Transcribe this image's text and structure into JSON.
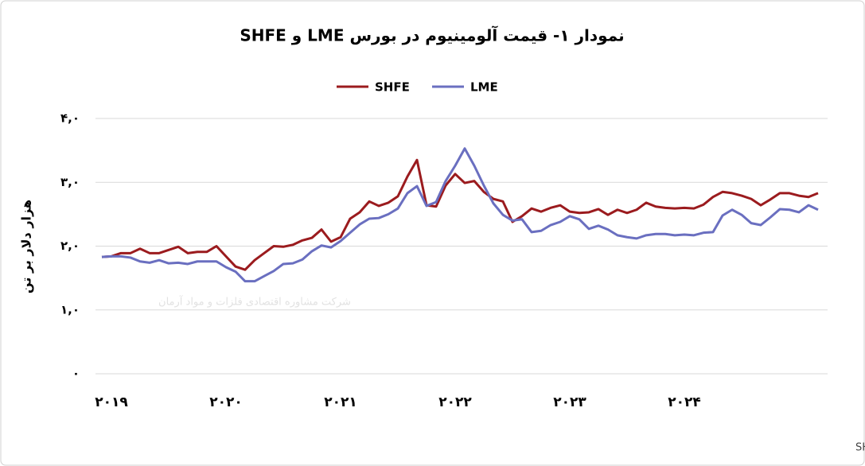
{
  "chart_data": {
    "type": "line",
    "title": "نمودار ۱- قیمت آلومینیوم در بورس LME و SHFE",
    "y_label": "هزار دلار بر تن",
    "source": "منبع: LME و SHFE",
    "watermark": "شرکت مشاوره اقتصادی فلزات و مواد آرمان",
    "legend": "top",
    "grid": true,
    "ylim": [
      0,
      4
    ],
    "yticks": [
      {
        "value": 0,
        "label": "۰"
      },
      {
        "value": 1,
        "label": "۱,۰"
      },
      {
        "value": 2,
        "label": "۲,۰"
      },
      {
        "value": 3,
        "label": "۳,۰"
      },
      {
        "value": 4,
        "label": "۴,۰"
      }
    ],
    "categories": [
      null,
      "۲۰۱۹",
      null,
      null,
      null,
      null,
      null,
      null,
      null,
      null,
      null,
      null,
      null,
      "۲۰۲۰",
      null,
      null,
      null,
      null,
      null,
      null,
      null,
      null,
      null,
      null,
      null,
      "۲۰۲۱",
      null,
      null,
      null,
      null,
      null,
      null,
      null,
      null,
      null,
      null,
      null,
      "۲۰۲۲",
      null,
      null,
      null,
      null,
      null,
      null,
      null,
      null,
      null,
      null,
      null,
      "۲۰۲۳",
      null,
      null,
      null,
      null,
      null,
      null,
      null,
      null,
      null,
      null,
      null,
      "۲۰۲۴",
      null,
      null,
      null,
      null,
      null,
      null,
      null,
      null,
      null,
      null,
      null,
      null,
      null,
      null
    ],
    "series": [
      {
        "name": "SHFE",
        "color": "#9b1b1e",
        "values": [
          1.83,
          1.84,
          1.89,
          1.89,
          1.96,
          1.89,
          1.89,
          1.94,
          1.99,
          1.89,
          1.91,
          1.91,
          2.0,
          1.84,
          1.68,
          1.63,
          1.78,
          1.89,
          2.0,
          1.99,
          2.02,
          2.09,
          2.13,
          2.26,
          2.07,
          2.14,
          2.43,
          2.53,
          2.7,
          2.63,
          2.68,
          2.78,
          3.09,
          3.35,
          2.64,
          2.62,
          2.95,
          3.13,
          2.99,
          3.02,
          2.85,
          2.74,
          2.7,
          2.38,
          2.47,
          2.59,
          2.54,
          2.6,
          2.64,
          2.54,
          2.52,
          2.53,
          2.58,
          2.49,
          2.57,
          2.52,
          2.57,
          2.68,
          2.62,
          2.6,
          2.59,
          2.6,
          2.59,
          2.65,
          2.77,
          2.85,
          2.83,
          2.79,
          2.74,
          2.64,
          2.73,
          2.83,
          2.83,
          2.79,
          2.77,
          2.83
        ]
      },
      {
        "name": "LME",
        "color": "#6a6fc0",
        "values": [
          1.83,
          1.84,
          1.84,
          1.82,
          1.76,
          1.74,
          1.78,
          1.73,
          1.74,
          1.72,
          1.76,
          1.76,
          1.76,
          1.67,
          1.6,
          1.45,
          1.45,
          1.53,
          1.61,
          1.72,
          1.73,
          1.79,
          1.92,
          2.01,
          1.98,
          2.08,
          2.21,
          2.34,
          2.43,
          2.44,
          2.5,
          2.59,
          2.83,
          2.94,
          2.63,
          2.69,
          3.02,
          3.26,
          3.53,
          3.26,
          2.95,
          2.67,
          2.49,
          2.4,
          2.42,
          2.22,
          2.24,
          2.33,
          2.38,
          2.47,
          2.42,
          2.27,
          2.32,
          2.26,
          2.17,
          2.14,
          2.12,
          2.17,
          2.19,
          2.19,
          2.17,
          2.18,
          2.17,
          2.21,
          2.22,
          2.48,
          2.57,
          2.49,
          2.36,
          2.33,
          2.45,
          2.58,
          2.57,
          2.53,
          2.64,
          2.57
        ]
      }
    ]
  }
}
